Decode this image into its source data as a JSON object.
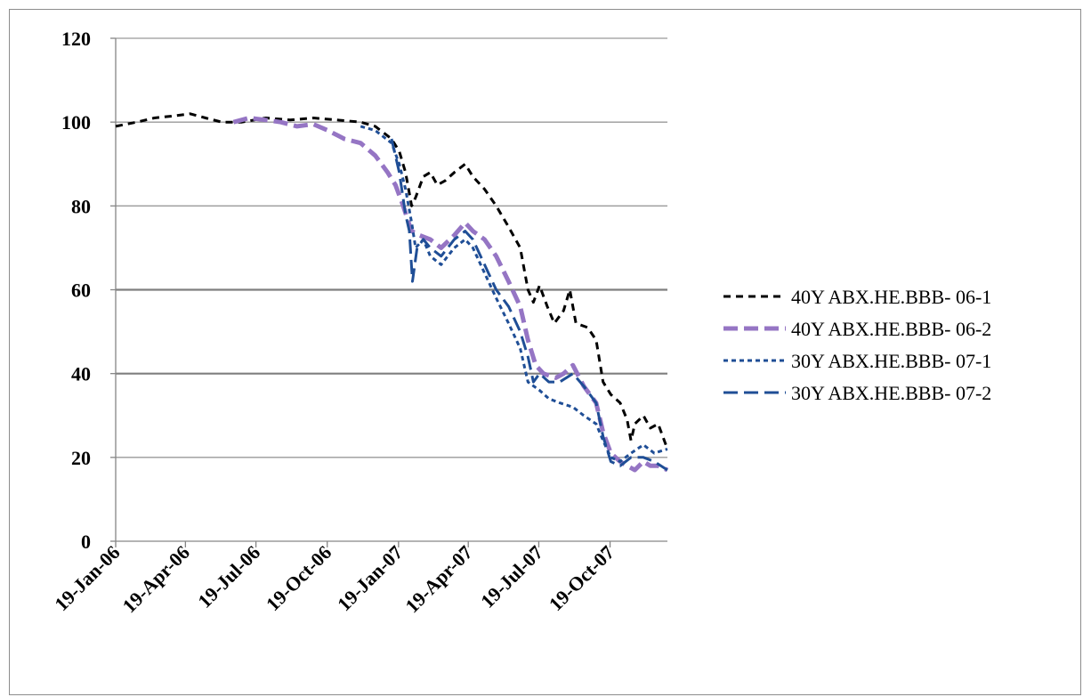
{
  "chart_data": {
    "type": "line",
    "title": "",
    "xlabel": "",
    "ylabel": "",
    "ylim": [
      0,
      120
    ],
    "yticks": [
      "0",
      "20",
      "40",
      "60",
      "80",
      "100",
      "120"
    ],
    "xlim": [
      "2006-01-19",
      "2008-01-01"
    ],
    "xticks": [
      "19-Jan-06",
      "19-Apr-06",
      "19-Jul-06",
      "19-Oct-06",
      "19-Jan-07",
      "19-Apr-07",
      "19-Jul-07",
      "19-Oct-07"
    ],
    "grid": "horizontal",
    "legend_position": "right",
    "series": [
      {
        "name": "40Y  ABX.HE.BBB- 06-1",
        "color": "#000000",
        "dash": "short-dash",
        "points": [
          [
            "2006-01-19",
            99
          ],
          [
            "2006-02-15",
            100
          ],
          [
            "2006-03-10",
            101
          ],
          [
            "2006-04-05",
            101.5
          ],
          [
            "2006-04-25",
            102
          ],
          [
            "2006-05-15",
            101
          ],
          [
            "2006-06-05",
            100
          ],
          [
            "2006-07-01",
            100
          ],
          [
            "2006-08-01",
            101
          ],
          [
            "2006-09-01",
            100.5
          ],
          [
            "2006-10-01",
            101
          ],
          [
            "2006-11-01",
            100.5
          ],
          [
            "2006-12-01",
            100
          ],
          [
            "2006-12-20",
            99
          ],
          [
            "2007-01-10",
            96
          ],
          [
            "2007-01-20",
            93
          ],
          [
            "2007-01-28",
            88
          ],
          [
            "2007-02-05",
            80
          ],
          [
            "2007-02-10",
            82
          ],
          [
            "2007-02-20",
            87
          ],
          [
            "2007-03-01",
            88
          ],
          [
            "2007-03-10",
            85
          ],
          [
            "2007-03-20",
            86
          ],
          [
            "2007-04-01",
            88
          ],
          [
            "2007-04-15",
            90
          ],
          [
            "2007-04-25",
            87
          ],
          [
            "2007-05-10",
            84
          ],
          [
            "2007-05-25",
            80
          ],
          [
            "2007-06-10",
            75
          ],
          [
            "2007-06-25",
            70
          ],
          [
            "2007-07-05",
            60
          ],
          [
            "2007-07-12",
            57
          ],
          [
            "2007-07-20",
            61
          ],
          [
            "2007-07-30",
            56
          ],
          [
            "2007-08-08",
            52
          ],
          [
            "2007-08-20",
            55
          ],
          [
            "2007-08-28",
            60
          ],
          [
            "2007-09-05",
            52
          ],
          [
            "2007-09-20",
            51
          ],
          [
            "2007-10-01",
            48
          ],
          [
            "2007-10-10",
            38
          ],
          [
            "2007-10-20",
            35
          ],
          [
            "2007-11-01",
            33
          ],
          [
            "2007-11-10",
            29
          ],
          [
            "2007-11-15",
            24
          ],
          [
            "2007-11-20",
            28
          ],
          [
            "2007-12-01",
            30
          ],
          [
            "2007-12-10",
            27
          ],
          [
            "2007-12-20",
            28
          ],
          [
            "2008-01-01",
            22
          ]
        ]
      },
      {
        "name": "40Y  ABX.HE.BBB- 06-2",
        "color": "#9575c4",
        "dash": "long-dash",
        "points": [
          [
            "2006-06-20",
            100
          ],
          [
            "2006-07-10",
            101
          ],
          [
            "2006-08-01",
            100.5
          ],
          [
            "2006-08-20",
            100
          ],
          [
            "2006-09-10",
            99
          ],
          [
            "2006-10-01",
            99.5
          ],
          [
            "2006-10-20",
            98
          ],
          [
            "2006-11-10",
            96
          ],
          [
            "2006-12-01",
            95
          ],
          [
            "2006-12-20",
            92
          ],
          [
            "2007-01-05",
            88
          ],
          [
            "2007-01-15",
            85
          ],
          [
            "2007-01-25",
            80
          ],
          [
            "2007-02-01",
            76
          ],
          [
            "2007-02-05",
            74
          ],
          [
            "2007-02-15",
            73
          ],
          [
            "2007-03-01",
            72
          ],
          [
            "2007-03-15",
            70
          ],
          [
            "2007-04-01",
            73
          ],
          [
            "2007-04-15",
            76
          ],
          [
            "2007-04-25",
            74
          ],
          [
            "2007-05-10",
            72
          ],
          [
            "2007-05-25",
            68
          ],
          [
            "2007-06-10",
            62
          ],
          [
            "2007-06-25",
            56
          ],
          [
            "2007-07-05",
            48
          ],
          [
            "2007-07-15",
            42
          ],
          [
            "2007-07-25",
            40
          ],
          [
            "2007-08-10",
            39
          ],
          [
            "2007-08-20",
            40
          ],
          [
            "2007-09-01",
            42
          ],
          [
            "2007-09-15",
            37
          ],
          [
            "2007-10-01",
            33
          ],
          [
            "2007-10-10",
            26
          ],
          [
            "2007-10-20",
            21
          ],
          [
            "2007-11-01",
            19
          ],
          [
            "2007-11-10",
            18
          ],
          [
            "2007-11-20",
            17
          ],
          [
            "2007-12-01",
            19
          ],
          [
            "2007-12-10",
            18
          ],
          [
            "2007-12-20",
            18
          ],
          [
            "2008-01-01",
            17
          ]
        ]
      },
      {
        "name": "30Y  ABX.HE.BBB- 07-1",
        "color": "#1f4e96",
        "dash": "dot",
        "points": [
          [
            "2006-12-01",
            99
          ],
          [
            "2006-12-20",
            98
          ],
          [
            "2007-01-10",
            95
          ],
          [
            "2007-01-20",
            90
          ],
          [
            "2007-01-28",
            84
          ],
          [
            "2007-02-05",
            76
          ],
          [
            "2007-02-10",
            70
          ],
          [
            "2007-02-20",
            72
          ],
          [
            "2007-03-01",
            68
          ],
          [
            "2007-03-15",
            66
          ],
          [
            "2007-04-01",
            70
          ],
          [
            "2007-04-15",
            72
          ],
          [
            "2007-04-25",
            70
          ],
          [
            "2007-05-10",
            64
          ],
          [
            "2007-05-25",
            58
          ],
          [
            "2007-06-10",
            52
          ],
          [
            "2007-06-25",
            46
          ],
          [
            "2007-07-05",
            38
          ],
          [
            "2007-07-20",
            36
          ],
          [
            "2007-08-01",
            34
          ],
          [
            "2007-08-15",
            33
          ],
          [
            "2007-09-01",
            32
          ],
          [
            "2007-09-15",
            30
          ],
          [
            "2007-10-01",
            28
          ],
          [
            "2007-10-10",
            24
          ],
          [
            "2007-10-20",
            20
          ],
          [
            "2007-11-01",
            19
          ],
          [
            "2007-11-15",
            21
          ],
          [
            "2007-12-01",
            23
          ],
          [
            "2007-12-15",
            21
          ],
          [
            "2008-01-01",
            22
          ]
        ]
      },
      {
        "name": "30Y  ABX.HE.BBB- 07-2",
        "color": "#1f4e96",
        "dash": "long-dash",
        "points": [
          [
            "2007-01-10",
            96
          ],
          [
            "2007-01-20",
            88
          ],
          [
            "2007-01-28",
            78
          ],
          [
            "2007-02-02",
            74
          ],
          [
            "2007-02-06",
            62
          ],
          [
            "2007-02-12",
            70
          ],
          [
            "2007-02-20",
            72
          ],
          [
            "2007-03-01",
            70
          ],
          [
            "2007-03-15",
            68
          ],
          [
            "2007-04-01",
            72
          ],
          [
            "2007-04-15",
            74
          ],
          [
            "2007-04-25",
            72
          ],
          [
            "2007-05-10",
            66
          ],
          [
            "2007-05-25",
            60
          ],
          [
            "2007-06-10",
            56
          ],
          [
            "2007-06-25",
            50
          ],
          [
            "2007-07-05",
            44
          ],
          [
            "2007-07-12",
            38
          ],
          [
            "2007-07-20",
            40
          ],
          [
            "2007-08-01",
            38
          ],
          [
            "2007-08-15",
            38
          ],
          [
            "2007-09-01",
            40
          ],
          [
            "2007-09-15",
            37
          ],
          [
            "2007-10-01",
            33
          ],
          [
            "2007-10-10",
            25
          ],
          [
            "2007-10-20",
            19
          ],
          [
            "2007-11-01",
            18
          ],
          [
            "2007-11-15",
            20
          ],
          [
            "2007-12-01",
            20
          ],
          [
            "2007-12-15",
            19
          ],
          [
            "2008-01-01",
            17
          ]
        ]
      }
    ]
  }
}
